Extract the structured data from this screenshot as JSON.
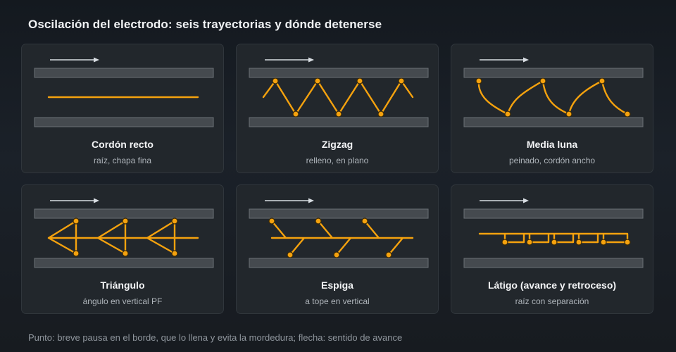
{
  "title": "Oscilación del electrodo: seis trayectorias y dónde detenerse",
  "colors": {
    "path": "#f5a20e",
    "plate": "#454a4f",
    "plate_stroke": "#6a7076",
    "arrow": "#d8dde2",
    "dot_stroke": "#3a2a08"
  },
  "cards": [
    {
      "id": "recto",
      "name": "Cordón recto",
      "use": "raíz, chapa fina"
    },
    {
      "id": "zigzag",
      "name": "Zigzag",
      "use": "relleno, en plano"
    },
    {
      "id": "media-luna",
      "name": "Media luna",
      "use": "peinado, cordón ancho"
    },
    {
      "id": "triangulo",
      "name": "Triángulo",
      "use": "ángulo en vertical PF"
    },
    {
      "id": "espiga",
      "name": "Espiga",
      "use": "a tope en vertical"
    },
    {
      "id": "latigo",
      "name": "Látigo (avance y retroceso)",
      "use": "raíz con separación"
    }
  ],
  "footnote": "Punto: breve pausa en el borde, que lo llena y evita la mordedura; flecha: sentido de avance"
}
